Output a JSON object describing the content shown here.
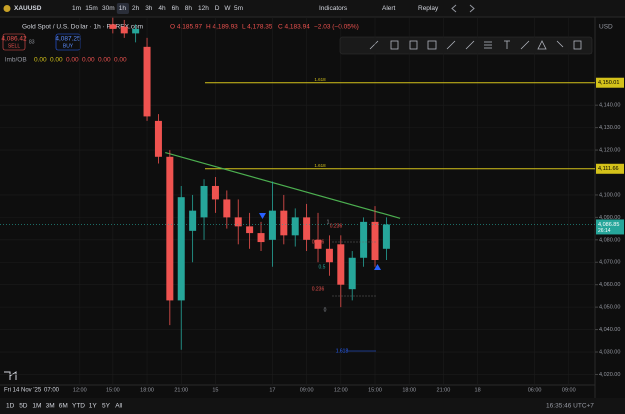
{
  "toolbar": {
    "symbol": "XAUUSD",
    "timeframes": [
      "1m",
      "15m",
      "30m",
      "1h",
      "2h",
      "3h",
      "4h",
      "6h",
      "8h",
      "12h",
      "D",
      "W",
      "5m"
    ],
    "indicators": "Indicators",
    "alert": "Alert",
    "replay": "Replay"
  },
  "trade": {
    "sell_price": "4,086.42",
    "sell": "SELL",
    "spread": "83",
    "buy_price": "4,087.25",
    "buy": "BUY"
  },
  "legend": {
    "title": "Gold Spot / U.S. Dollar · 1h · FOREX.com",
    "ohlc": [
      "O 4,185.97",
      "H 4,189.93",
      "L 4,178.35",
      "C 4,183.94",
      "−2.03 (−0.05%)"
    ]
  },
  "indicator": {
    "name": "lmb/OB",
    "values": [
      "0.00",
      "0.00",
      "0.00",
      "0.00",
      "0.00",
      "0.00"
    ]
  },
  "currency": "USD",
  "crosshair": {
    "date": "Fri 14 Nov '25",
    "time": "07:00"
  },
  "fib_labels": [
    "1",
    "0.236",
    "0.786",
    "0.5",
    "0.236",
    "0",
    "1.618"
  ],
  "chart_data": {
    "type": "candlestick",
    "x": [
      0,
      1,
      2,
      3,
      4,
      5,
      6,
      7,
      8,
      9,
      10,
      11,
      12,
      13,
      14,
      15,
      16,
      17,
      18,
      19,
      20,
      21,
      22,
      23,
      24
    ],
    "open": [
      4176,
      4175,
      4172,
      4166,
      4133,
      4117,
      4053,
      4084,
      4090,
      4104,
      4098,
      4090,
      4086,
      4083,
      4080,
      4093,
      4082,
      4090,
      4080,
      4076,
      4078,
      4058,
      4072,
      4088,
      4076
    ],
    "high": [
      4179,
      4178,
      4176,
      4170,
      4136,
      4120,
      4104,
      4100,
      4107,
      4108,
      4102,
      4098,
      4092,
      4088,
      4106,
      4100,
      4094,
      4096,
      4092,
      4082,
      4082,
      4075,
      4090,
      4095,
      4090
    ],
    "low": [
      4172,
      4170,
      4168,
      4133,
      4114,
      4042,
      4031,
      4070,
      4080,
      4092,
      4085,
      4078,
      4076,
      4075,
      4068,
      4078,
      4077,
      4075,
      4070,
      4064,
      4050,
      4053,
      4068,
      4068,
      4071
    ],
    "close": [
      4174,
      4172,
      4174,
      4135,
      4117,
      4053,
      4099,
      4093,
      4104,
      4098,
      4090,
      4086,
      4083,
      4079,
      4093,
      4082,
      4090,
      4080,
      4076,
      4070,
      4060,
      4072,
      4088,
      4071,
      4086.85
    ],
    "up_color": "#26a69a",
    "down_color": "#ef5350",
    "xlim": [
      -9.9,
      42.3
    ],
    "ylim": [
      4015.3,
      4179.3
    ],
    "xticks": [
      {
        "value": -2.9,
        "label": "12:00"
      },
      {
        "value": 0,
        "label": "15:00"
      },
      {
        "value": 3,
        "label": "18:00"
      },
      {
        "value": 6,
        "label": "21:00"
      },
      {
        "value": 9,
        "label": "15"
      },
      {
        "value": 14,
        "label": "17"
      },
      {
        "value": 17,
        "label": "09:00"
      },
      {
        "value": 20,
        "label": "12:00"
      },
      {
        "value": 23,
        "label": "15:00"
      },
      {
        "value": 26,
        "label": "18:00"
      },
      {
        "value": 29,
        "label": "21:00"
      },
      {
        "value": 32,
        "label": "18"
      },
      {
        "value": 37,
        "label": "06:00"
      },
      {
        "value": 40,
        "label": "09:00"
      }
    ],
    "yticks": [
      {
        "value": 4020,
        "label": "4,020.00"
      },
      {
        "value": 4030,
        "label": "4,030.00"
      },
      {
        "value": 4040,
        "label": "4,040.00"
      },
      {
        "value": 4050,
        "label": "4,050.00"
      },
      {
        "value": 4060,
        "label": "4,060.00"
      },
      {
        "value": 4070,
        "label": "4,070.00"
      },
      {
        "value": 4080,
        "label": "4,080.00"
      },
      {
        "value": 4090,
        "label": "4,090.00"
      },
      {
        "value": 4100,
        "label": "4,100.00"
      },
      {
        "value": 4120,
        "label": "4,120.00"
      },
      {
        "value": 4130,
        "label": "4,130.00"
      },
      {
        "value": 4140,
        "label": "4,140.00"
      }
    ],
    "grid": true,
    "hlines": [
      {
        "value": 4150.01,
        "label": "4,150.01",
        "note": "1.618",
        "color": "#d4c21a"
      },
      {
        "value": 4111.66,
        "label": "4,111.66",
        "note": "1.618",
        "color": "#d4c21a"
      }
    ],
    "last_price": {
      "value": 4086.85,
      "label": "4,086.85",
      "countdown": "26:14",
      "color": "#26a69a"
    },
    "trendline": {
      "x": [
        4.6,
        25.2
      ],
      "y": [
        4118.9,
        4089.6
      ],
      "color": "#4caf50"
    }
  },
  "footer": {
    "ranges": [
      "1D",
      "5D",
      "1M",
      "3M",
      "6M",
      "YTD",
      "1Y",
      "5Y",
      "All"
    ],
    "clock": "16:35:46 UTC+7"
  }
}
